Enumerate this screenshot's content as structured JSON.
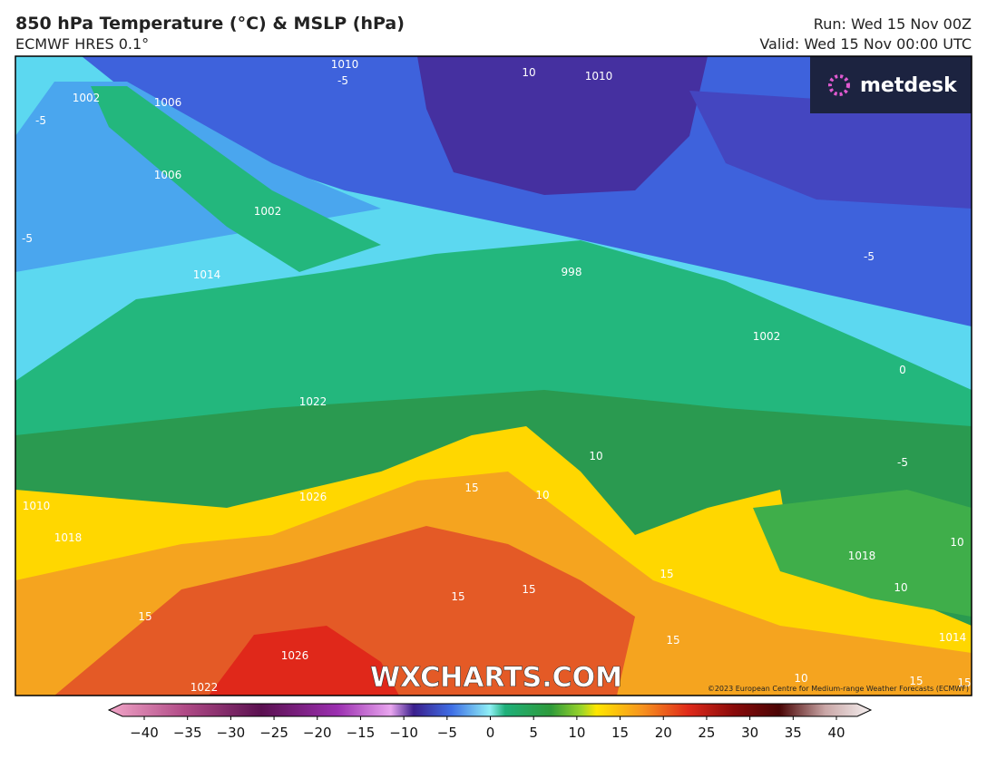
{
  "header": {
    "title": "850 hPa Temperature (°C) & MSLP (hPa)",
    "model": "ECMWF HRES 0.1°",
    "run": "Run: Wed 15 Nov 00Z",
    "valid": "Valid: Wed 15 Nov 00:00 UTC"
  },
  "map": {
    "contour_labels": [
      "1010",
      "-5",
      "10",
      "1010",
      "1002",
      "1006",
      "-5",
      "1006",
      "1002",
      "-5",
      "1014",
      "998",
      "-5",
      "1002",
      "0",
      "1022",
      "10",
      "-5",
      "15",
      "10",
      "1026",
      "1010",
      "1018",
      "1018",
      "10",
      "15",
      "10",
      "15",
      "15",
      "15",
      "15",
      "1014",
      "1026",
      "1022",
      "10",
      "15",
      "15"
    ],
    "watermark": "WXCHARTS.COM",
    "copyright": "©2023 European Centre for Medium-range Weather Forecasts (ECMWF)",
    "logo": "metdesk"
  },
  "colorbar": {
    "range": [
      -40,
      40
    ],
    "ticks": [
      {
        "value": -40,
        "label": "−40"
      },
      {
        "value": -35,
        "label": "−35"
      },
      {
        "value": -30,
        "label": "−30"
      },
      {
        "value": -25,
        "label": "−25"
      },
      {
        "value": -20,
        "label": "−20"
      },
      {
        "value": -15,
        "label": "−15"
      },
      {
        "value": -10,
        "label": "−10"
      },
      {
        "value": -5,
        "label": "−5"
      },
      0,
      5,
      10,
      15,
      20,
      25,
      30,
      35,
      40
    ]
  }
}
